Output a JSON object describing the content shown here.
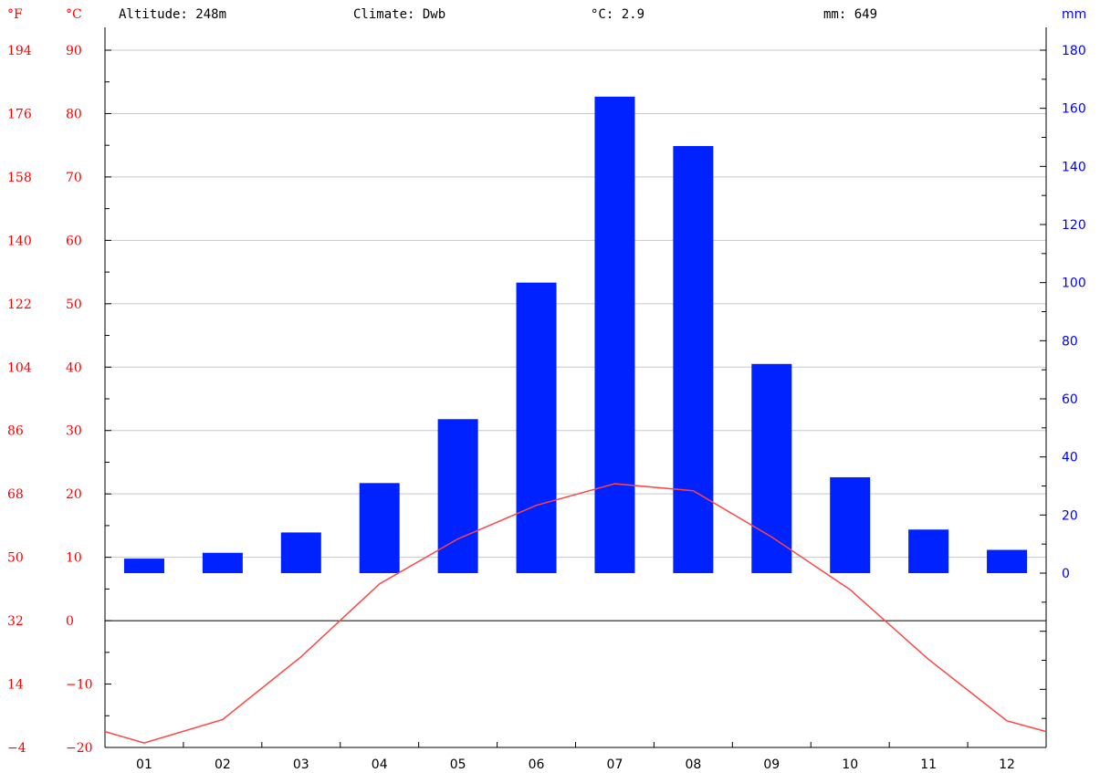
{
  "header": {
    "altitude": "Altitude: 248m",
    "climate": "Climate: Dwb",
    "mean_temp": "°C: 2.9",
    "precip_total": "mm: 649"
  },
  "chart_data": {
    "type": "bar",
    "title": "",
    "categories": [
      "01",
      "02",
      "03",
      "04",
      "05",
      "06",
      "07",
      "08",
      "09",
      "10",
      "11",
      "12"
    ],
    "series": [
      {
        "name": "mm",
        "kind": "bar",
        "axis": "right",
        "color": "#0022ff",
        "values": [
          5,
          7,
          14,
          31,
          53,
          100,
          164,
          147,
          72,
          33,
          15,
          8
        ]
      },
      {
        "name": "°C",
        "kind": "line",
        "axis": "left",
        "color": "#ff4444",
        "values": [
          -19.3,
          -15.6,
          -5.7,
          5.8,
          12.9,
          18.2,
          21.6,
          20.5,
          13.2,
          4.9,
          -6.1,
          -15.8
        ]
      }
    ],
    "left_axis": {
      "unit_f": "°F",
      "unit_c": "°C",
      "ylim": [
        -20,
        90
      ],
      "ticks_c": [
        "90",
        "80",
        "70",
        "60",
        "50",
        "40",
        "30",
        "20",
        "10",
        "0",
        "−10",
        "−20"
      ],
      "ticks_f": [
        "194",
        "176",
        "158",
        "140",
        "122",
        "104",
        "86",
        "68",
        "50",
        "32",
        "14",
        "−4"
      ]
    },
    "right_axis": {
      "unit": "mm",
      "ylim": [
        -60,
        180
      ],
      "ticks": [
        "180",
        "160",
        "140",
        "120",
        "100",
        "80",
        "60",
        "40",
        "20",
        "0"
      ]
    },
    "line_edge_values": {
      "left": -17.5,
      "right": -17.5
    },
    "grid": true,
    "colors": {
      "temperature": "#ff0000",
      "precipitation": "#0000ff",
      "bar": "#0022ff",
      "grid": "#c8c8c8"
    }
  }
}
